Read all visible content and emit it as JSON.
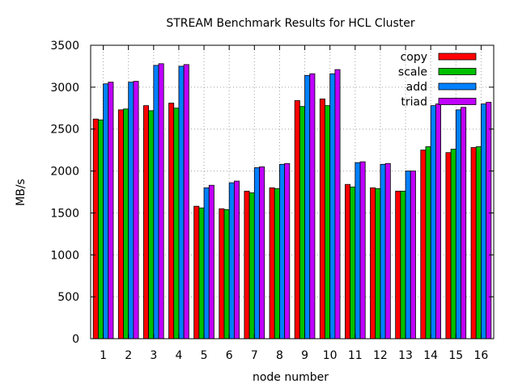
{
  "chart_data": {
    "type": "bar",
    "title": "STREAM Benchmark Results for HCL Cluster",
    "xlabel": "node number",
    "ylabel": "MB/s",
    "ylim": [
      0,
      3500
    ],
    "yticks": [
      0,
      500,
      1000,
      1500,
      2000,
      2500,
      3000,
      3500
    ],
    "grid": true,
    "legend_position": "top-right",
    "categories": [
      "1",
      "2",
      "3",
      "4",
      "5",
      "6",
      "7",
      "8",
      "9",
      "10",
      "11",
      "12",
      "13",
      "14",
      "15",
      "16"
    ],
    "series": [
      {
        "name": "copy",
        "color": "#ff0000",
        "values": [
          2620,
          2730,
          2780,
          2810,
          1580,
          1550,
          1760,
          1800,
          2840,
          2860,
          1840,
          1800,
          1760,
          2250,
          2220,
          2280
        ]
      },
      {
        "name": "scale",
        "color": "#00c000",
        "values": [
          2610,
          2740,
          2720,
          2750,
          1560,
          1540,
          1740,
          1790,
          2770,
          2780,
          1810,
          1790,
          1760,
          2290,
          2260,
          2290
        ]
      },
      {
        "name": "add",
        "color": "#0080ff",
        "values": [
          3040,
          3060,
          3260,
          3250,
          1800,
          1860,
          2040,
          2080,
          3140,
          3160,
          2100,
          2080,
          2000,
          2780,
          2730,
          2800
        ]
      },
      {
        "name": "triad",
        "color": "#c000ff",
        "values": [
          3060,
          3070,
          3280,
          3270,
          1830,
          1880,
          2050,
          2090,
          3160,
          3210,
          2110,
          2090,
          2000,
          2800,
          2760,
          2820
        ]
      }
    ]
  }
}
